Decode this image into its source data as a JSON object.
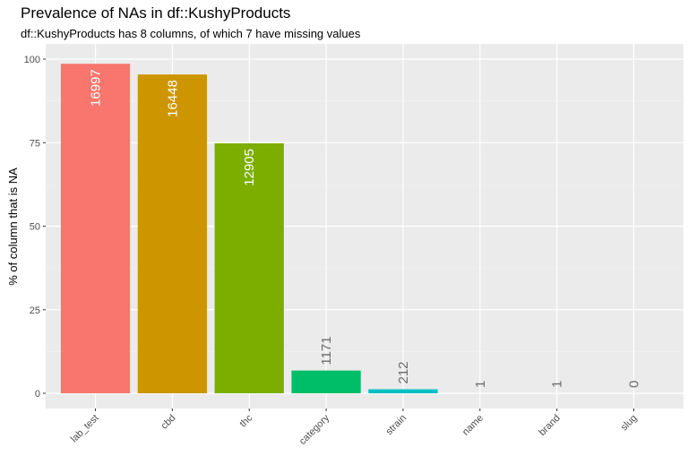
{
  "chart_data": {
    "type": "bar",
    "title": "Prevalence of NAs in df::KushyProducts",
    "subtitle": "df::KushyProducts has 8 columns, of which 7 have missing values",
    "xlabel": "",
    "ylabel": "% of column that is NA",
    "ylim": [
      0,
      100
    ],
    "yticks": [
      0,
      25,
      50,
      75,
      100
    ],
    "grid": true,
    "legend": "none",
    "categories": [
      "lab_test",
      "cbd",
      "thc",
      "category",
      "strain",
      "name",
      "brand",
      "slug"
    ],
    "values": [
      98.6,
      95.4,
      74.8,
      6.8,
      1.2,
      0.0,
      0.0,
      0.0
    ],
    "labels": [
      "16997",
      "16448",
      "12905",
      "1171",
      "212",
      "1",
      "1",
      "0"
    ],
    "colors": [
      "#F8766D",
      "#CD9600",
      "#7CAE00",
      "#00BE67",
      "#00BFC4",
      "#00A9FF",
      "#C77CFF",
      "#FF61CC"
    ]
  }
}
